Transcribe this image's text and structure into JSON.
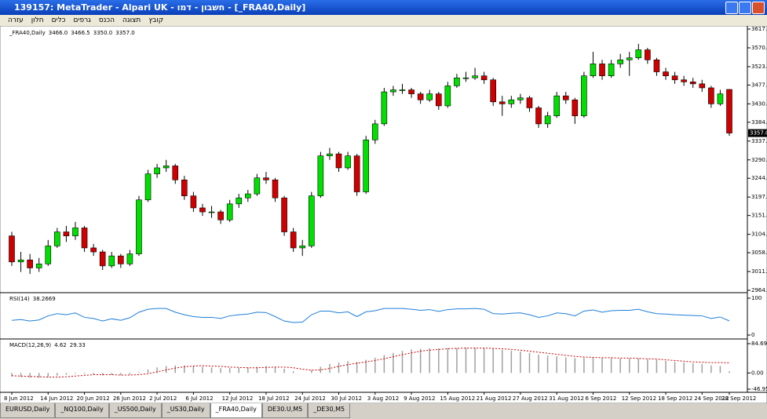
{
  "window": {
    "title": "139157: MetaTrader - Alpari UK - חשבון - דמו - [_FRA40,Daily]",
    "menu": [
      "קובץ",
      "תצוגה",
      "הכנס",
      "גרפים",
      "כלים",
      "חלון",
      "עזרה"
    ],
    "tabs": [
      "EURUSD,Daily",
      "_NQ100,Daily",
      "_US500,Daily",
      "_US30,Daily",
      "_FRA40,Daily",
      "DE30.U,M5",
      "_DE30,M5"
    ],
    "active_tab": 4
  },
  "chart_data": {
    "type": "candlestick",
    "symbol": "_FRA40,Daily",
    "up_color": "#00e000",
    "down_color": "#d00000",
    "categories": [
      "8 Jun 2012",
      null,
      null,
      null,
      "14 Jun 2012",
      null,
      null,
      null,
      "20 Jun 2012",
      null,
      null,
      null,
      "26 Jun 2012",
      null,
      null,
      null,
      "2 Jul 2012",
      null,
      null,
      null,
      "6 Jul 2012",
      null,
      null,
      null,
      "12 Jul 2012",
      null,
      null,
      null,
      "18 Jul 2012",
      null,
      null,
      null,
      "24 Jul 2012",
      null,
      null,
      null,
      "30 Jul 2012",
      null,
      null,
      null,
      "3 Aug 2012",
      null,
      null,
      null,
      "9 Aug 2012",
      null,
      null,
      null,
      "15 Aug 2012",
      null,
      null,
      null,
      "21 Aug 2012",
      null,
      null,
      null,
      "27 Aug 2012",
      null,
      null,
      null,
      "31 Aug 2012",
      null,
      null,
      null,
      "6 Sep 2012",
      null,
      null,
      null,
      "12 Sep 2012",
      null,
      null,
      null,
      "18 Sep 2012",
      null,
      null,
      null,
      "24 Sep 2012",
      null,
      null,
      "28 Sep 2012"
    ],
    "candles": [
      [
        3100,
        3110,
        3025,
        3035
      ],
      [
        3035,
        3060,
        3010,
        3040
      ],
      [
        3040,
        3055,
        3005,
        3020
      ],
      [
        3020,
        3045,
        3010,
        3030
      ],
      [
        3030,
        3090,
        3025,
        3075
      ],
      [
        3075,
        3120,
        3070,
        3110
      ],
      [
        3110,
        3125,
        3085,
        3100
      ],
      [
        3100,
        3135,
        3090,
        3120
      ],
      [
        3120,
        3125,
        3060,
        3070
      ],
      [
        3070,
        3080,
        3050,
        3060
      ],
      [
        3060,
        3065,
        3015,
        3025
      ],
      [
        3025,
        3060,
        3020,
        3050
      ],
      [
        3050,
        3055,
        3020,
        3030
      ],
      [
        3030,
        3065,
        3025,
        3055
      ],
      [
        3055,
        3200,
        3050,
        3190
      ],
      [
        3190,
        3265,
        3185,
        3255
      ],
      [
        3255,
        3280,
        3245,
        3270
      ],
      [
        3270,
        3290,
        3260,
        3275
      ],
      [
        3275,
        3280,
        3230,
        3240
      ],
      [
        3240,
        3250,
        3190,
        3200
      ],
      [
        3200,
        3210,
        3160,
        3170
      ],
      [
        3170,
        3180,
        3150,
        3160
      ],
      [
        3160,
        3175,
        3145,
        3160
      ],
      [
        3160,
        3165,
        3130,
        3140
      ],
      [
        3140,
        3190,
        3135,
        3180
      ],
      [
        3180,
        3205,
        3170,
        3195
      ],
      [
        3195,
        3215,
        3185,
        3205
      ],
      [
        3205,
        3255,
        3200,
        3245
      ],
      [
        3245,
        3260,
        3230,
        3240
      ],
      [
        3240,
        3245,
        3185,
        3195
      ],
      [
        3195,
        3200,
        3100,
        3110
      ],
      [
        3110,
        3120,
        3060,
        3070
      ],
      [
        3070,
        3090,
        3050,
        3075
      ],
      [
        3075,
        3210,
        3070,
        3200
      ],
      [
        3200,
        3310,
        3195,
        3300
      ],
      [
        3300,
        3320,
        3290,
        3305
      ],
      [
        3305,
        3310,
        3260,
        3270
      ],
      [
        3270,
        3310,
        3265,
        3300
      ],
      [
        3300,
        3305,
        3200,
        3210
      ],
      [
        3210,
        3350,
        3205,
        3340
      ],
      [
        3340,
        3390,
        3330,
        3380
      ],
      [
        3380,
        3470,
        3375,
        3460
      ],
      [
        3460,
        3475,
        3450,
        3465
      ],
      [
        3465,
        3480,
        3455,
        3465
      ],
      [
        3465,
        3470,
        3445,
        3455
      ],
      [
        3455,
        3460,
        3430,
        3440
      ],
      [
        3440,
        3465,
        3435,
        3455
      ],
      [
        3455,
        3460,
        3415,
        3425
      ],
      [
        3425,
        3485,
        3420,
        3475
      ],
      [
        3475,
        3505,
        3470,
        3495
      ],
      [
        3495,
        3510,
        3485,
        3495
      ],
      [
        3495,
        3520,
        3490,
        3500
      ],
      [
        3500,
        3510,
        3480,
        3490
      ],
      [
        3490,
        3495,
        3425,
        3435
      ],
      [
        3435,
        3450,
        3400,
        3430
      ],
      [
        3430,
        3450,
        3420,
        3440
      ],
      [
        3440,
        3455,
        3430,
        3445
      ],
      [
        3445,
        3450,
        3410,
        3420
      ],
      [
        3420,
        3425,
        3370,
        3380
      ],
      [
        3380,
        3410,
        3370,
        3400
      ],
      [
        3400,
        3460,
        3395,
        3450
      ],
      [
        3450,
        3460,
        3430,
        3440
      ],
      [
        3440,
        3445,
        3380,
        3400
      ],
      [
        3400,
        3510,
        3395,
        3500
      ],
      [
        3500,
        3560,
        3495,
        3530
      ],
      [
        3530,
        3540,
        3490,
        3500
      ],
      [
        3500,
        3540,
        3495,
        3530
      ],
      [
        3530,
        3555,
        3520,
        3540
      ],
      [
        3540,
        3560,
        3500,
        3545
      ],
      [
        3545,
        3580,
        3540,
        3565
      ],
      [
        3565,
        3570,
        3530,
        3540
      ],
      [
        3540,
        3545,
        3500,
        3510
      ],
      [
        3510,
        3520,
        3490,
        3500
      ],
      [
        3500,
        3510,
        3480,
        3490
      ],
      [
        3490,
        3500,
        3475,
        3485
      ],
      [
        3485,
        3495,
        3470,
        3480
      ],
      [
        3480,
        3490,
        3460,
        3470
      ],
      [
        3470,
        3475,
        3420,
        3430
      ],
      [
        3430,
        3465,
        3425,
        3455
      ],
      [
        3466,
        3466.5,
        3350,
        3357
      ]
    ],
    "last_labels": [
      "3466.0",
      "3466.5",
      "3350.0",
      "3357.0"
    ],
    "ylim": [
      2964,
      3617
    ],
    "yticks": [
      {
        "value": 3617,
        "label": "3617.0"
      },
      {
        "value": 3570,
        "label": "3570.0"
      },
      {
        "value": 3523,
        "label": "3523.0"
      },
      {
        "value": 3477,
        "label": "3477.0"
      },
      {
        "value": 3430,
        "label": "3430.0"
      },
      {
        "value": 3384,
        "label": "3384.0"
      },
      {
        "value": 3337,
        "label": "3337.0"
      },
      {
        "value": 3290,
        "label": "3290.0"
      },
      {
        "value": 3244,
        "label": "3244.0"
      },
      {
        "value": 3197,
        "label": "3197.0"
      },
      {
        "value": 3151,
        "label": "3151.0"
      },
      {
        "value": 3104,
        "label": "3104.0"
      },
      {
        "value": 3058,
        "label": "3058.0"
      },
      {
        "value": 3011,
        "label": "3011.0"
      },
      {
        "value": 2964,
        "label": "2964.0"
      }
    ],
    "rsi": {
      "name": "RSI(14)",
      "color": "#1e7fd8",
      "ylim": [
        0,
        100
      ],
      "yticks": [
        100,
        0
      ],
      "values": [
        40,
        42,
        38,
        41,
        52,
        58,
        55,
        60,
        48,
        45,
        38,
        44,
        40,
        47,
        62,
        70,
        72,
        72,
        62,
        55,
        50,
        48,
        48,
        45,
        52,
        55,
        57,
        62,
        61,
        50,
        38,
        34,
        35,
        55,
        65,
        65,
        60,
        63,
        50,
        63,
        66,
        72,
        72,
        72,
        70,
        67,
        69,
        64,
        69,
        71,
        71,
        72,
        70,
        58,
        57,
        59,
        60,
        55,
        48,
        52,
        60,
        58,
        52,
        65,
        68,
        62,
        66,
        67,
        67,
        70,
        63,
        58,
        57,
        55,
        54,
        53,
        52,
        45,
        49,
        38.2669
      ]
    },
    "macd": {
      "name": "MACD(12,26,9)",
      "hist_color": "#a0a0a0",
      "signal_color": "#d00000",
      "ylim": [
        -46.95,
        84.69
      ],
      "yticks": [
        84.69,
        {
          "value": 0,
          "label": "0.00"
        },
        -46.95
      ],
      "histogram": [
        -10,
        -12,
        -14,
        -14,
        -12,
        -8,
        -5,
        -2,
        -3,
        -4,
        -7,
        -6,
        -7,
        -5,
        2,
        10,
        16,
        20,
        22,
        22,
        20,
        18,
        16,
        14,
        14,
        15,
        16,
        18,
        20,
        18,
        12,
        5,
        0,
        8,
        18,
        26,
        30,
        34,
        32,
        38,
        44,
        52,
        58,
        64,
        68,
        70,
        71,
        71,
        72,
        72,
        73,
        73,
        72,
        70,
        67,
        64,
        62,
        58,
        53,
        50,
        48,
        45,
        43,
        44,
        45,
        44,
        43,
        42,
        42,
        42,
        40,
        38,
        35,
        32,
        30,
        28,
        26,
        22,
        20,
        4.62
      ],
      "signal": [
        -8,
        -9,
        -10,
        -11,
        -12,
        -12,
        -11,
        -9,
        -7,
        -5,
        -5,
        -5,
        -6,
        -6,
        -5,
        -2,
        3,
        9,
        14,
        18,
        20,
        21,
        20,
        19,
        17,
        16,
        15,
        15,
        16,
        17,
        17,
        15,
        11,
        8,
        9,
        13,
        19,
        24,
        28,
        32,
        36,
        41,
        47,
        53,
        58,
        63,
        66,
        68,
        70,
        71,
        72,
        72,
        72,
        71,
        70,
        68,
        66,
        63,
        60,
        57,
        54,
        51,
        48,
        46,
        45,
        44,
        44,
        43,
        43,
        42,
        41,
        40,
        38,
        36,
        34,
        32,
        31,
        30,
        30,
        29.33
      ]
    }
  }
}
